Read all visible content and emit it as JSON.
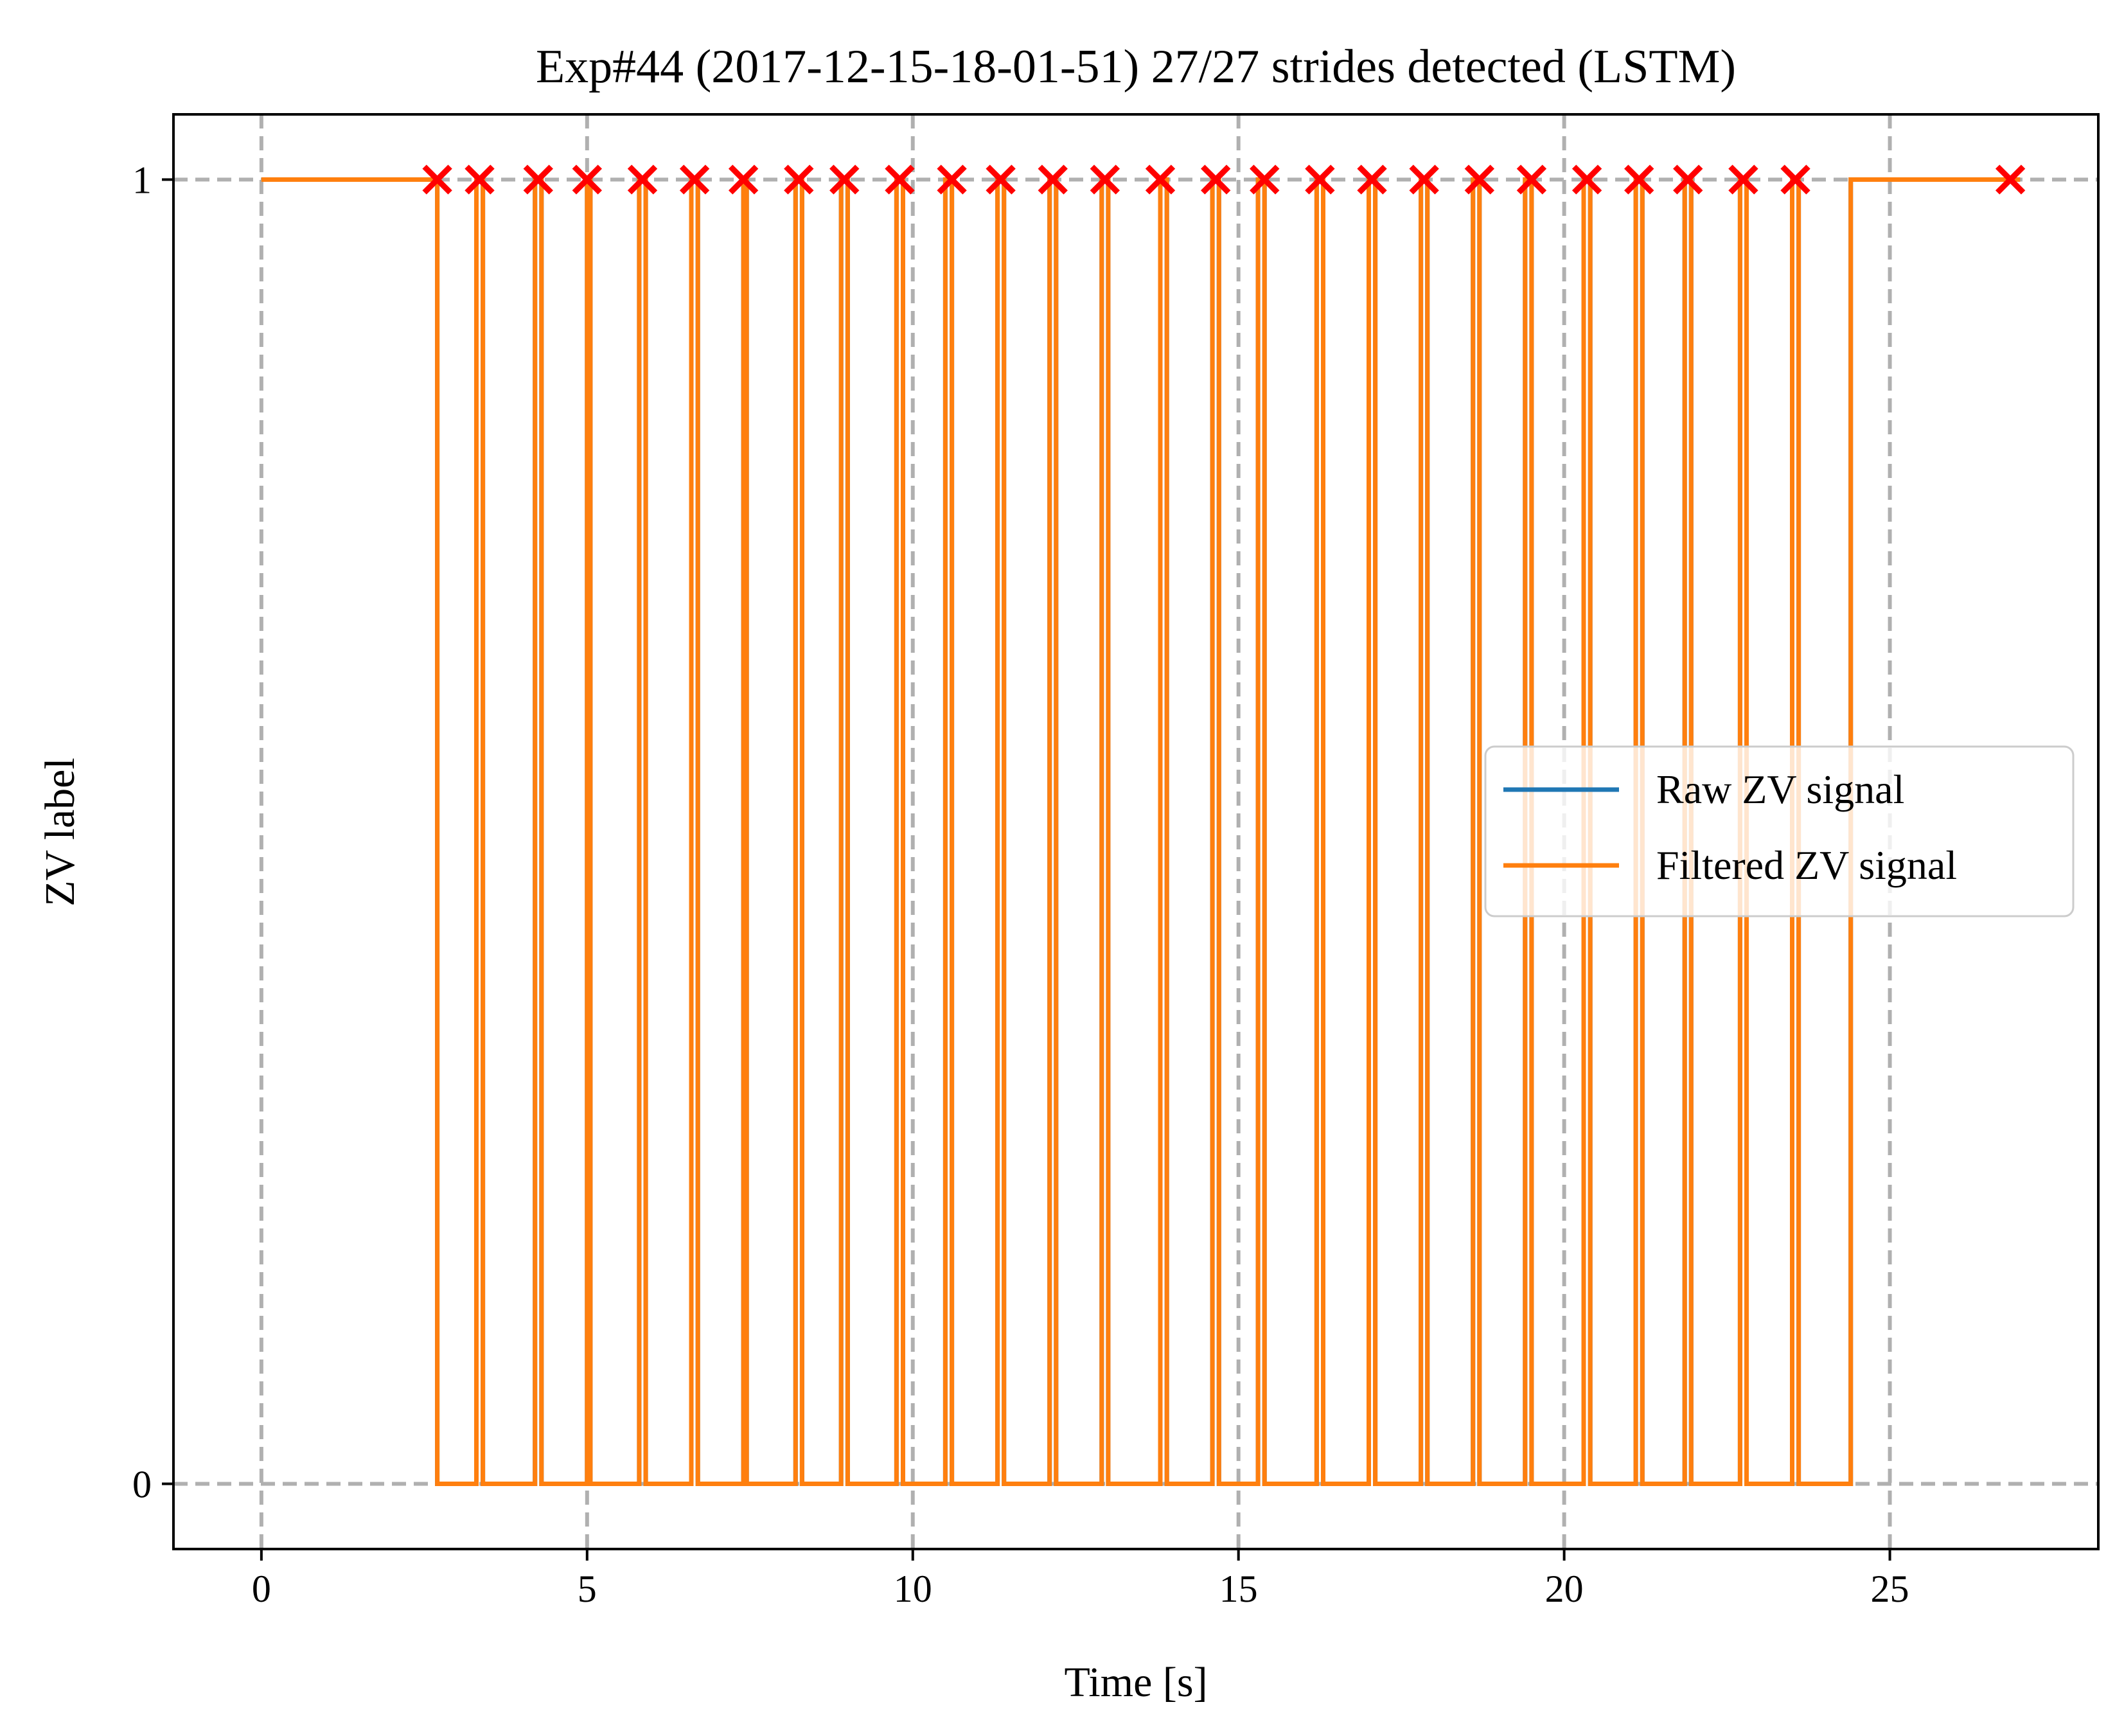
{
  "chart_data": {
    "type": "line",
    "title": "Exp#44 (2017-12-15-18-01-51) 27/27 strides detected (LSTM)",
    "xlabel": "Time [s]",
    "ylabel": "ZV label",
    "xlim": [
      -1.35,
      28.2
    ],
    "ylim": [
      -0.05,
      1.05
    ],
    "xticks": [
      0,
      5,
      10,
      15,
      20,
      25
    ],
    "xtick_labels": [
      "0",
      "5",
      "10",
      "15",
      "20",
      "25"
    ],
    "yticks": [
      0,
      1
    ],
    "ytick_labels": [
      "0",
      "1"
    ],
    "grid": true,
    "grid_style": "dashed",
    "legend": {
      "position": "center-right",
      "entries": [
        "Raw ZV signal",
        "Filtered ZV signal"
      ]
    },
    "colors": {
      "raw": "#1f77b4",
      "filtered": "#ff7f0e",
      "stride_marker": "#ff0000",
      "grid": "#b0b0b0"
    },
    "series": [
      {
        "name": "Raw ZV signal",
        "style": "step",
        "points": [
          [
            0,
            1
          ],
          [
            2.7,
            1
          ],
          [
            2.7,
            0
          ],
          [
            3.3,
            0
          ],
          [
            3.3,
            1
          ],
          [
            3.4,
            1
          ],
          [
            3.4,
            0
          ],
          [
            4.2,
            0
          ],
          [
            4.2,
            1
          ],
          [
            4.3,
            1
          ],
          [
            4.3,
            0
          ],
          [
            5.0,
            0
          ],
          [
            5.0,
            1
          ],
          [
            5.05,
            1
          ],
          [
            5.05,
            0
          ],
          [
            5.8,
            0
          ],
          [
            5.8,
            1
          ],
          [
            5.9,
            1
          ],
          [
            5.9,
            0
          ],
          [
            6.6,
            0
          ],
          [
            6.6,
            1
          ],
          [
            6.7,
            1
          ],
          [
            6.7,
            0
          ],
          [
            7.4,
            0
          ],
          [
            7.4,
            1
          ],
          [
            7.45,
            1
          ],
          [
            7.45,
            0
          ],
          [
            8.2,
            0
          ],
          [
            8.2,
            1
          ],
          [
            8.3,
            1
          ],
          [
            8.3,
            0
          ],
          [
            8.9,
            0
          ],
          [
            8.9,
            1
          ],
          [
            9.0,
            1
          ],
          [
            9.0,
            0
          ],
          [
            9.75,
            0
          ],
          [
            9.75,
            1
          ],
          [
            9.85,
            1
          ],
          [
            9.85,
            0
          ],
          [
            10.5,
            0
          ],
          [
            10.5,
            1
          ],
          [
            10.6,
            1
          ],
          [
            10.6,
            0
          ],
          [
            11.3,
            0
          ],
          [
            11.3,
            1
          ],
          [
            11.4,
            1
          ],
          [
            11.4,
            0
          ],
          [
            12.1,
            0
          ],
          [
            12.1,
            1
          ],
          [
            12.2,
            1
          ],
          [
            12.2,
            0
          ],
          [
            12.9,
            0
          ],
          [
            12.9,
            1
          ],
          [
            13.0,
            1
          ],
          [
            13.0,
            0
          ],
          [
            13.8,
            0
          ],
          [
            13.8,
            1
          ],
          [
            13.9,
            1
          ],
          [
            13.9,
            0
          ],
          [
            14.6,
            0
          ],
          [
            14.6,
            1
          ],
          [
            14.7,
            1
          ],
          [
            14.7,
            0
          ],
          [
            15.3,
            0
          ],
          [
            15.3,
            1
          ],
          [
            15.4,
            1
          ],
          [
            15.4,
            0
          ],
          [
            16.2,
            0
          ],
          [
            16.2,
            1
          ],
          [
            16.3,
            1
          ],
          [
            16.3,
            0
          ],
          [
            17.0,
            0
          ],
          [
            17.0,
            1
          ],
          [
            17.1,
            1
          ],
          [
            17.1,
            0
          ],
          [
            17.8,
            0
          ],
          [
            17.8,
            1
          ],
          [
            17.9,
            1
          ],
          [
            17.9,
            0
          ],
          [
            18.6,
            0
          ],
          [
            18.6,
            1
          ],
          [
            18.7,
            1
          ],
          [
            18.7,
            0
          ],
          [
            19.4,
            0
          ],
          [
            19.4,
            1
          ],
          [
            19.5,
            1
          ],
          [
            19.5,
            0
          ],
          [
            20.3,
            0
          ],
          [
            20.3,
            1
          ],
          [
            20.4,
            1
          ],
          [
            20.4,
            0
          ],
          [
            21.1,
            0
          ],
          [
            21.1,
            1
          ],
          [
            21.2,
            1
          ],
          [
            21.2,
            0
          ],
          [
            21.85,
            0
          ],
          [
            21.85,
            1
          ],
          [
            21.95,
            1
          ],
          [
            21.95,
            0
          ],
          [
            22.7,
            0
          ],
          [
            22.7,
            1
          ],
          [
            22.8,
            1
          ],
          [
            22.8,
            0
          ],
          [
            23.5,
            0
          ],
          [
            23.5,
            1
          ],
          [
            23.6,
            1
          ],
          [
            23.6,
            0
          ],
          [
            24.4,
            0
          ],
          [
            24.4,
            1
          ],
          [
            27.0,
            1
          ]
        ]
      },
      {
        "name": "Filtered ZV signal",
        "style": "step",
        "points": [
          [
            0,
            1
          ],
          [
            2.7,
            1
          ],
          [
            2.7,
            0
          ],
          [
            3.3,
            0
          ],
          [
            3.3,
            1
          ],
          [
            3.4,
            1
          ],
          [
            3.4,
            0
          ],
          [
            4.2,
            0
          ],
          [
            4.2,
            1
          ],
          [
            4.3,
            1
          ],
          [
            4.3,
            0
          ],
          [
            5.0,
            0
          ],
          [
            5.0,
            1
          ],
          [
            5.05,
            1
          ],
          [
            5.05,
            0
          ],
          [
            5.8,
            0
          ],
          [
            5.8,
            1
          ],
          [
            5.9,
            1
          ],
          [
            5.9,
            0
          ],
          [
            6.6,
            0
          ],
          [
            6.6,
            1
          ],
          [
            6.7,
            1
          ],
          [
            6.7,
            0
          ],
          [
            7.4,
            0
          ],
          [
            7.4,
            1
          ],
          [
            7.45,
            1
          ],
          [
            7.45,
            0
          ],
          [
            8.2,
            0
          ],
          [
            8.2,
            1
          ],
          [
            8.3,
            1
          ],
          [
            8.3,
            0
          ],
          [
            8.9,
            0
          ],
          [
            8.9,
            1
          ],
          [
            9.0,
            1
          ],
          [
            9.0,
            0
          ],
          [
            9.75,
            0
          ],
          [
            9.75,
            1
          ],
          [
            9.85,
            1
          ],
          [
            9.85,
            0
          ],
          [
            10.5,
            0
          ],
          [
            10.5,
            1
          ],
          [
            10.6,
            1
          ],
          [
            10.6,
            0
          ],
          [
            11.3,
            0
          ],
          [
            11.3,
            1
          ],
          [
            11.4,
            1
          ],
          [
            11.4,
            0
          ],
          [
            12.1,
            0
          ],
          [
            12.1,
            1
          ],
          [
            12.2,
            1
          ],
          [
            12.2,
            0
          ],
          [
            12.9,
            0
          ],
          [
            12.9,
            1
          ],
          [
            13.0,
            1
          ],
          [
            13.0,
            0
          ],
          [
            13.8,
            0
          ],
          [
            13.8,
            1
          ],
          [
            13.9,
            1
          ],
          [
            13.9,
            0
          ],
          [
            14.6,
            0
          ],
          [
            14.6,
            1
          ],
          [
            14.7,
            1
          ],
          [
            14.7,
            0
          ],
          [
            15.3,
            0
          ],
          [
            15.3,
            1
          ],
          [
            15.4,
            1
          ],
          [
            15.4,
            0
          ],
          [
            16.2,
            0
          ],
          [
            16.2,
            1
          ],
          [
            16.3,
            1
          ],
          [
            16.3,
            0
          ],
          [
            17.0,
            0
          ],
          [
            17.0,
            1
          ],
          [
            17.1,
            1
          ],
          [
            17.1,
            0
          ],
          [
            17.8,
            0
          ],
          [
            17.8,
            1
          ],
          [
            17.9,
            1
          ],
          [
            17.9,
            0
          ],
          [
            18.6,
            0
          ],
          [
            18.6,
            1
          ],
          [
            18.7,
            1
          ],
          [
            18.7,
            0
          ],
          [
            19.4,
            0
          ],
          [
            19.4,
            1
          ],
          [
            19.5,
            1
          ],
          [
            19.5,
            0
          ],
          [
            20.3,
            0
          ],
          [
            20.3,
            1
          ],
          [
            20.4,
            1
          ],
          [
            20.4,
            0
          ],
          [
            21.1,
            0
          ],
          [
            21.1,
            1
          ],
          [
            21.2,
            1
          ],
          [
            21.2,
            0
          ],
          [
            21.85,
            0
          ],
          [
            21.85,
            1
          ],
          [
            21.95,
            1
          ],
          [
            21.95,
            0
          ],
          [
            22.7,
            0
          ],
          [
            22.7,
            1
          ],
          [
            22.8,
            1
          ],
          [
            22.8,
            0
          ],
          [
            23.5,
            0
          ],
          [
            23.5,
            1
          ],
          [
            23.6,
            1
          ],
          [
            23.6,
            0
          ],
          [
            24.4,
            0
          ],
          [
            24.4,
            1
          ],
          [
            27.0,
            1
          ]
        ]
      }
    ],
    "stride_markers": {
      "marker": "x",
      "y": 1,
      "x": [
        2.7,
        3.35,
        4.25,
        5.0,
        5.85,
        6.65,
        7.4,
        8.25,
        8.95,
        9.8,
        10.6,
        11.35,
        12.15,
        12.95,
        13.8,
        14.65,
        15.4,
        16.25,
        17.05,
        17.85,
        18.7,
        19.5,
        20.35,
        21.15,
        21.9,
        22.75,
        23.55,
        26.85
      ]
    }
  }
}
